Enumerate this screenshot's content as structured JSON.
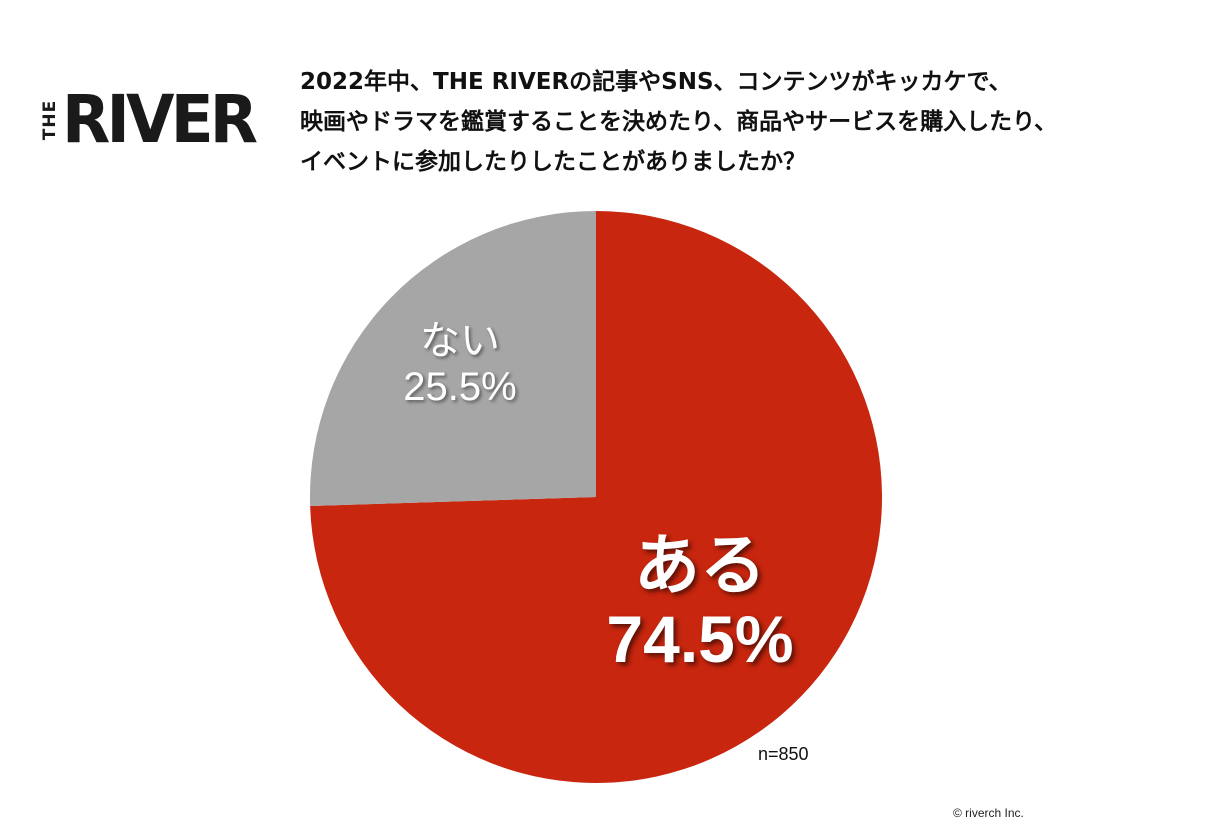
{
  "logo": {
    "small_text": "THE",
    "main_text": "RIVER"
  },
  "title_lines": [
    "2022年中、THE RIVERの記事やSNS、コンテンツがキッカケで、",
    "映画やドラマを鑑賞することを決めたり、商品やサービスを購入したり、",
    "イベントに参加したりしたことがありましたか？"
  ],
  "chart_data": {
    "type": "pie",
    "title": "2022年中、THE RIVERの記事やSNS、コンテンツがキッカケで、映画やドラマを鑑賞することを決めたり、商品やサービスを購入したり、イベントに参加したりしたことがありましたか？",
    "slices": [
      {
        "label": "ある",
        "value": 74.5,
        "value_label": "74.5%",
        "color": "#c8260e"
      },
      {
        "label": "ない",
        "value": 25.5,
        "value_label": "25.5%",
        "color": "#a6a6a6"
      }
    ],
    "start_angle": "top, clockwise",
    "sample_size": "n=850"
  },
  "copyright": "© riverch Inc."
}
